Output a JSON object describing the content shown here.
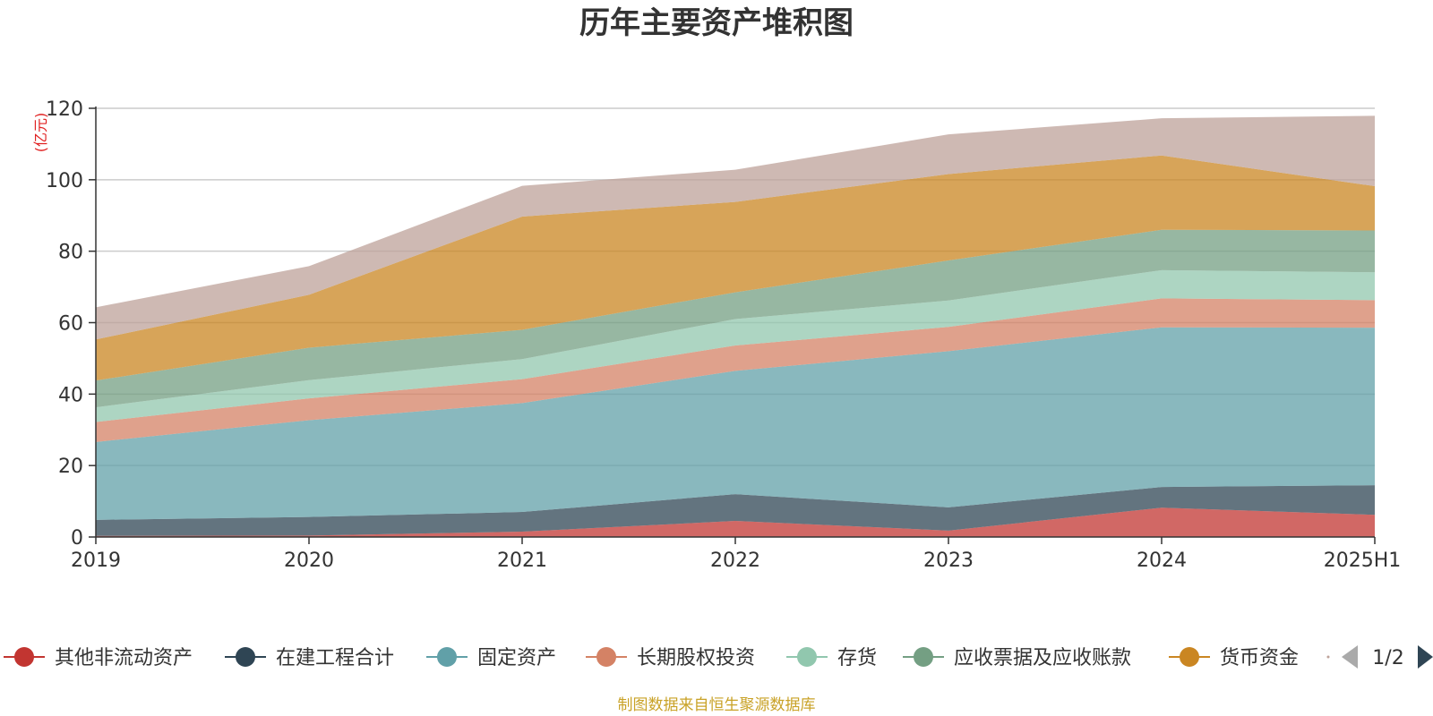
{
  "chart_data": {
    "type": "area",
    "stacked": true,
    "title": "历年主要资产堆积图",
    "unit_label": "(亿元)",
    "source_note": "制图数据来自恒生聚源数据库",
    "ylim": [
      0,
      120
    ],
    "yticks": [
      0,
      20,
      40,
      60,
      80,
      100,
      120
    ],
    "grid": true,
    "legend_position": "bottom",
    "categories": [
      "2019",
      "2020",
      "2021",
      "2022",
      "2023",
      "2024",
      "2025H1"
    ],
    "series": [
      {
        "name": "其他非流动资产",
        "color": "#c23531",
        "values": [
          0.3,
          0.4,
          1.5,
          4.5,
          1.8,
          8.2,
          6.2
        ]
      },
      {
        "name": "在建工程合计",
        "color": "#2f4554",
        "values": [
          4.5,
          5.2,
          5.5,
          7.5,
          6.5,
          5.8,
          8.3
        ]
      },
      {
        "name": "固定资产",
        "color": "#61a0a8",
        "values": [
          21.8,
          27.1,
          30.5,
          34.5,
          43.7,
          44.7,
          44.1
        ]
      },
      {
        "name": "长期股权投资",
        "color": "#d48265",
        "values": [
          5.6,
          6.1,
          6.7,
          7.1,
          6.8,
          8.1,
          7.7
        ]
      },
      {
        "name": "存货",
        "color": "#91c7ae",
        "values": [
          4.1,
          5.1,
          5.6,
          7.4,
          7.4,
          7.9,
          7.8
        ]
      },
      {
        "name": "应收票据及应收账款",
        "color": "#749f83",
        "values": [
          7.5,
          9.1,
          8.2,
          7.5,
          11.2,
          11.3,
          11.7
        ]
      },
      {
        "name": "货币资金",
        "color": "#ca8622",
        "values": [
          11.5,
          14.8,
          31.7,
          25.3,
          24.2,
          20.8,
          12.4
        ]
      },
      {
        "name": "",
        "color": "#bda29a",
        "values": [
          9.0,
          8.0,
          8.6,
          9.0,
          11.1,
          10.4,
          19.7
        ]
      }
    ],
    "legend_page": "1/2"
  }
}
